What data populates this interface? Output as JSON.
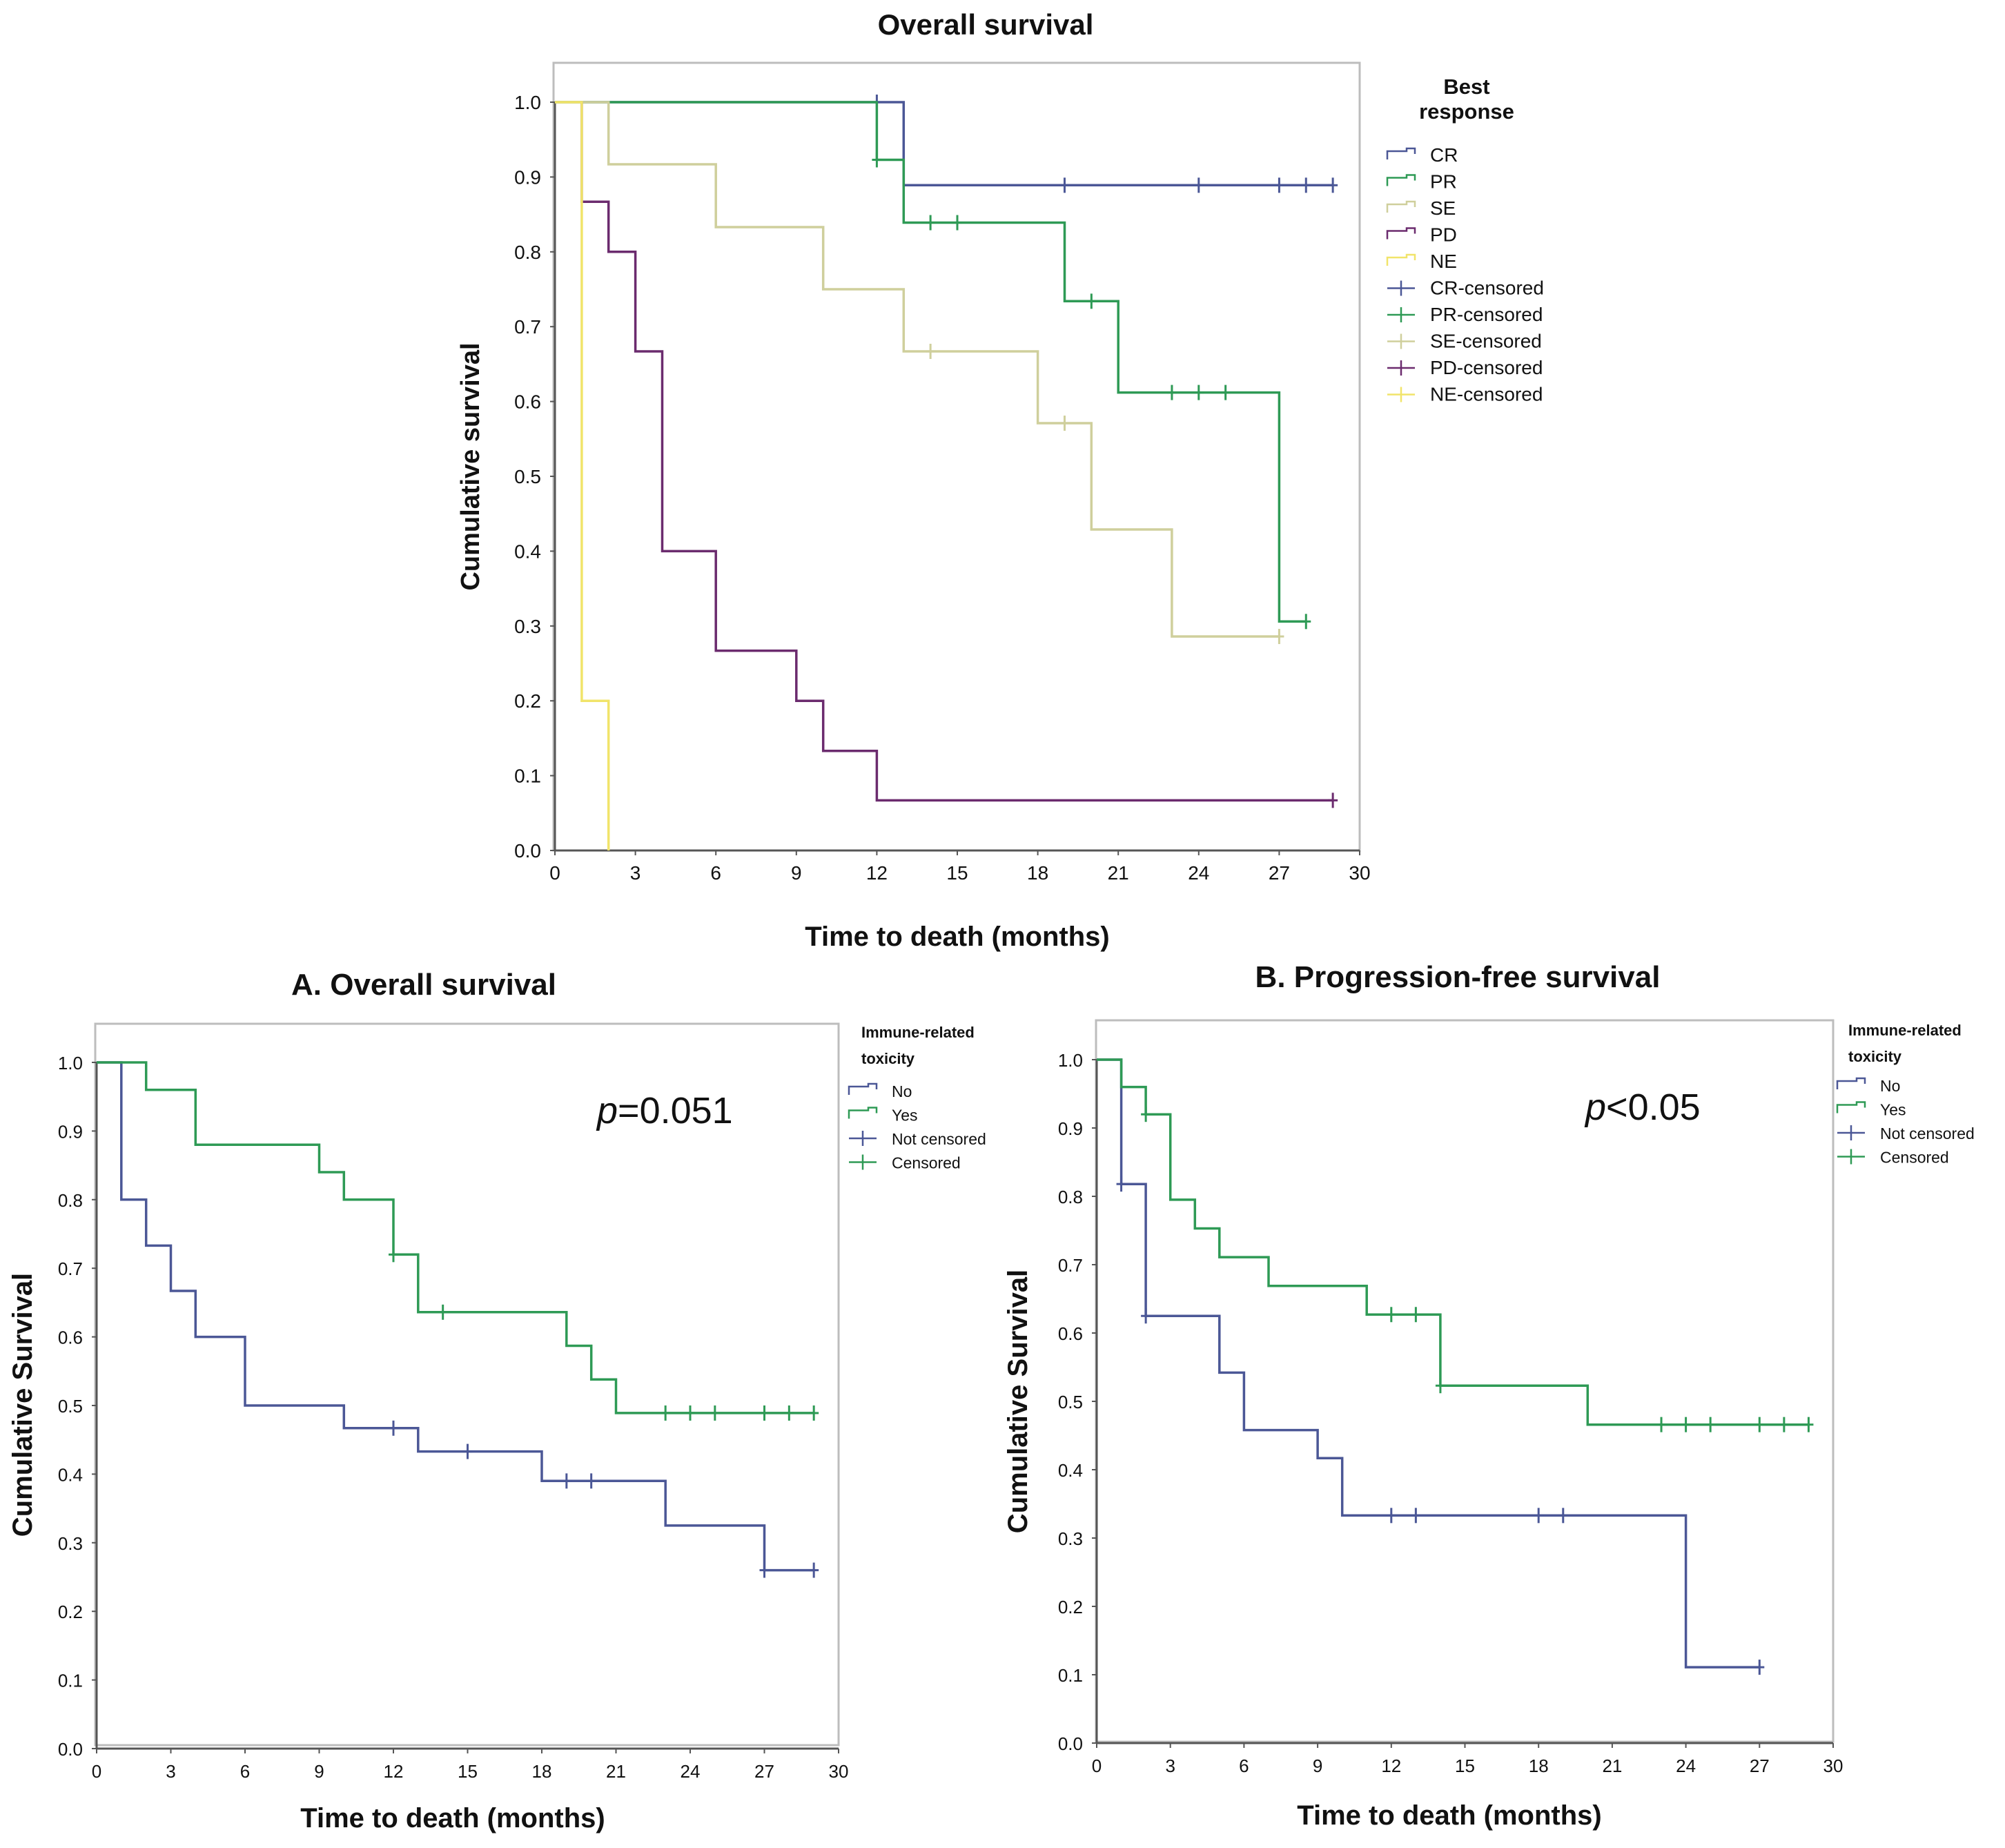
{
  "colors": {
    "CR": "#4b5796",
    "PR": "#2e9a55",
    "SE": "#cfcf9c",
    "PD": "#6b2b6e",
    "NE": "#f1e46a",
    "No": "#4b5796",
    "Yes": "#2e9a55",
    "axis": "#555555",
    "frame": "#bdbdbd",
    "text": "#111111"
  },
  "chart_data": [
    {
      "id": "top",
      "type": "line",
      "title": "Overall survival",
      "xlabel": "Time to death (months)",
      "ylabel": "Cumulative survival",
      "xlim": [
        0,
        30
      ],
      "ylim": [
        0,
        1
      ],
      "xticks": [
        "0",
        "3",
        "6",
        "9",
        "12",
        "15",
        "18",
        "21",
        "24",
        "27",
        "30"
      ],
      "yticks": [
        "0.0",
        "0.1",
        "0.2",
        "0.3",
        "0.4",
        "0.5",
        "0.6",
        "0.7",
        "0.8",
        "0.9",
        "1.0"
      ],
      "legend_title": [
        "Best",
        "response"
      ],
      "legend": [
        "CR",
        "PR",
        "SE",
        "PD",
        "NE",
        "CR-censored",
        "PR-censored",
        "SE-censored",
        "PD-censored",
        "NE-censored"
      ],
      "series": [
        {
          "name": "CR",
          "color": "CR",
          "steps": [
            [
              0,
              1
            ],
            [
              13,
              1
            ],
            [
              13,
              0.889
            ],
            [
              29,
              0.889
            ]
          ],
          "censored": [
            [
              12,
              1
            ],
            [
              19,
              0.889
            ],
            [
              24,
              0.889
            ],
            [
              27,
              0.889
            ],
            [
              28,
              0.889
            ],
            [
              29,
              0.889
            ]
          ]
        },
        {
          "name": "PR",
          "color": "PR",
          "steps": [
            [
              0,
              1
            ],
            [
              12,
              1
            ],
            [
              12,
              0.923
            ],
            [
              13,
              0.923
            ],
            [
              13,
              0.839
            ],
            [
              19,
              0.839
            ],
            [
              19,
              0.734
            ],
            [
              21,
              0.734
            ],
            [
              21,
              0.612
            ],
            [
              27,
              0.612
            ],
            [
              27,
              0.306
            ],
            [
              28,
              0.306
            ]
          ],
          "censored": [
            [
              12,
              0.923
            ],
            [
              14,
              0.839
            ],
            [
              15,
              0.839
            ],
            [
              20,
              0.734
            ],
            [
              23,
              0.612
            ],
            [
              24,
              0.612
            ],
            [
              25,
              0.612
            ],
            [
              28,
              0.306
            ]
          ]
        },
        {
          "name": "SE",
          "color": "SE",
          "steps": [
            [
              0,
              1
            ],
            [
              2,
              1
            ],
            [
              2,
              0.917
            ],
            [
              6,
              0.917
            ],
            [
              6,
              0.833
            ],
            [
              10,
              0.833
            ],
            [
              10,
              0.75
            ],
            [
              13,
              0.75
            ],
            [
              13,
              0.667
            ],
            [
              18,
              0.667
            ],
            [
              18,
              0.571
            ],
            [
              20,
              0.571
            ],
            [
              20,
              0.429
            ],
            [
              23,
              0.429
            ],
            [
              23,
              0.286
            ],
            [
              27,
              0.286
            ]
          ],
          "censored": [
            [
              14,
              0.667
            ],
            [
              19,
              0.571
            ],
            [
              27,
              0.286
            ]
          ]
        },
        {
          "name": "PD",
          "color": "PD",
          "steps": [
            [
              1,
              1
            ],
            [
              1,
              0.867
            ],
            [
              2,
              0.867
            ],
            [
              2,
              0.8
            ],
            [
              3,
              0.8
            ],
            [
              3,
              0.667
            ],
            [
              4,
              0.667
            ],
            [
              4,
              0.4
            ],
            [
              6,
              0.4
            ],
            [
              6,
              0.267
            ],
            [
              9,
              0.267
            ],
            [
              9,
              0.2
            ],
            [
              10,
              0.2
            ],
            [
              10,
              0.133
            ],
            [
              12,
              0.133
            ],
            [
              12,
              0.067
            ],
            [
              29,
              0.067
            ]
          ],
          "censored": [
            [
              29,
              0.067
            ]
          ]
        },
        {
          "name": "NE",
          "color": "NE",
          "steps": [
            [
              0,
              1
            ],
            [
              1,
              1
            ],
            [
              1,
              0.2
            ],
            [
              2,
              0.2
            ],
            [
              2,
              0
            ]
          ],
          "censored": []
        }
      ]
    },
    {
      "id": "A",
      "type": "line",
      "title": "A. Overall survival",
      "xlabel": "Time to death (months)",
      "ylabel": "Cumulative Survival",
      "annotation": {
        "italic": "p",
        "rest": "=0.051"
      },
      "xlim": [
        0,
        30
      ],
      "ylim": [
        0,
        1
      ],
      "xticks": [
        "0",
        "3",
        "6",
        "9",
        "12",
        "15",
        "18",
        "21",
        "24",
        "27",
        "30"
      ],
      "yticks": [
        "0.0",
        "0.1",
        "0.2",
        "0.3",
        "0.4",
        "0.5",
        "0.6",
        "0.7",
        "0.8",
        "0.9",
        "1.0"
      ],
      "legend_title": [
        "Immune-related",
        "toxicity"
      ],
      "legend": [
        "No",
        "Yes",
        "Not censored",
        "Censored"
      ],
      "series": [
        {
          "name": "No",
          "color": "No",
          "steps": [
            [
              0,
              1
            ],
            [
              1,
              1
            ],
            [
              1,
              0.8
            ],
            [
              2,
              0.8
            ],
            [
              2,
              0.733
            ],
            [
              3,
              0.733
            ],
            [
              3,
              0.667
            ],
            [
              4,
              0.667
            ],
            [
              4,
              0.6
            ],
            [
              6,
              0.6
            ],
            [
              6,
              0.5
            ],
            [
              10,
              0.5
            ],
            [
              10,
              0.467
            ],
            [
              13,
              0.467
            ],
            [
              13,
              0.433
            ],
            [
              18,
              0.433
            ],
            [
              18,
              0.39
            ],
            [
              23,
              0.39
            ],
            [
              23,
              0.325
            ],
            [
              27,
              0.325
            ],
            [
              27,
              0.26
            ],
            [
              29,
              0.26
            ]
          ],
          "censored": [
            [
              12,
              0.467
            ],
            [
              15,
              0.433
            ],
            [
              19,
              0.39
            ],
            [
              20,
              0.39
            ],
            [
              27,
              0.26
            ],
            [
              29,
              0.26
            ]
          ]
        },
        {
          "name": "Yes",
          "color": "Yes",
          "steps": [
            [
              0,
              1
            ],
            [
              2,
              1
            ],
            [
              2,
              0.96
            ],
            [
              4,
              0.96
            ],
            [
              4,
              0.88
            ],
            [
              9,
              0.88
            ],
            [
              9,
              0.84
            ],
            [
              10,
              0.84
            ],
            [
              10,
              0.8
            ],
            [
              12,
              0.8
            ],
            [
              12,
              0.72
            ],
            [
              13,
              0.72
            ],
            [
              13,
              0.636
            ],
            [
              19,
              0.636
            ],
            [
              19,
              0.587
            ],
            [
              20,
              0.587
            ],
            [
              20,
              0.538
            ],
            [
              21,
              0.538
            ],
            [
              21,
              0.489
            ],
            [
              29,
              0.489
            ]
          ],
          "censored": [
            [
              12,
              0.72
            ],
            [
              14,
              0.636
            ],
            [
              23,
              0.489
            ],
            [
              24,
              0.489
            ],
            [
              25,
              0.489
            ],
            [
              27,
              0.489
            ],
            [
              28,
              0.489
            ],
            [
              29,
              0.489
            ]
          ]
        }
      ]
    },
    {
      "id": "B",
      "type": "line",
      "title": "B. Progression-free survival",
      "xlabel": "Time to death (months)",
      "ylabel": "Cumulative Survival",
      "annotation": {
        "italic": "p",
        "rest": "<0.05"
      },
      "xlim": [
        0,
        30
      ],
      "ylim": [
        0,
        1
      ],
      "xticks": [
        "0",
        "3",
        "6",
        "9",
        "12",
        "15",
        "18",
        "21",
        "24",
        "27",
        "30"
      ],
      "yticks": [
        "0.0",
        "0.1",
        "0.2",
        "0.3",
        "0.4",
        "0.5",
        "0.6",
        "0.7",
        "0.8",
        "0.9",
        "1.0"
      ],
      "legend_title": [
        "Immune-related",
        "toxicity"
      ],
      "legend": [
        "No",
        "Yes",
        "Not censored",
        "Censored"
      ],
      "series": [
        {
          "name": "No",
          "color": "No",
          "steps": [
            [
              0,
              1
            ],
            [
              1,
              1
            ],
            [
              1,
              0.818
            ],
            [
              2,
              0.818
            ],
            [
              2,
              0.625
            ],
            [
              5,
              0.625
            ],
            [
              5,
              0.542
            ],
            [
              6,
              0.542
            ],
            [
              6,
              0.458
            ],
            [
              9,
              0.458
            ],
            [
              9,
              0.417
            ],
            [
              10,
              0.417
            ],
            [
              10,
              0.333
            ],
            [
              24,
              0.333
            ],
            [
              24,
              0.111
            ],
            [
              27,
              0.111
            ]
          ],
          "censored": [
            [
              1,
              0.818
            ],
            [
              2,
              0.625
            ],
            [
              12,
              0.333
            ],
            [
              13,
              0.333
            ],
            [
              18,
              0.333
            ],
            [
              19,
              0.333
            ],
            [
              27,
              0.111
            ]
          ]
        },
        {
          "name": "Yes",
          "color": "Yes",
          "steps": [
            [
              0,
              1
            ],
            [
              1,
              1
            ],
            [
              1,
              0.96
            ],
            [
              2,
              0.96
            ],
            [
              2,
              0.92
            ],
            [
              3,
              0.92
            ],
            [
              3,
              0.795
            ],
            [
              4,
              0.795
            ],
            [
              4,
              0.753
            ],
            [
              5,
              0.753
            ],
            [
              5,
              0.711
            ],
            [
              7,
              0.711
            ],
            [
              7,
              0.669
            ],
            [
              11,
              0.669
            ],
            [
              11,
              0.627
            ],
            [
              14,
              0.627
            ],
            [
              14,
              0.523
            ],
            [
              20,
              0.523
            ],
            [
              20,
              0.466
            ],
            [
              29,
              0.466
            ]
          ],
          "censored": [
            [
              2,
              0.92
            ],
            [
              12,
              0.627
            ],
            [
              13,
              0.627
            ],
            [
              14,
              0.523
            ],
            [
              23,
              0.466
            ],
            [
              24,
              0.466
            ],
            [
              25,
              0.466
            ],
            [
              27,
              0.466
            ],
            [
              28,
              0.466
            ],
            [
              29,
              0.466
            ]
          ]
        }
      ]
    }
  ]
}
